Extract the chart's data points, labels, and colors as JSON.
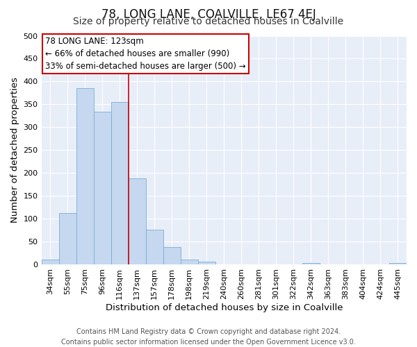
{
  "title": "78, LONG LANE, COALVILLE, LE67 4EJ",
  "subtitle": "Size of property relative to detached houses in Coalville",
  "xlabel": "Distribution of detached houses by size in Coalville",
  "ylabel": "Number of detached properties",
  "bar_labels": [
    "34sqm",
    "55sqm",
    "75sqm",
    "96sqm",
    "116sqm",
    "137sqm",
    "157sqm",
    "178sqm",
    "198sqm",
    "219sqm",
    "240sqm",
    "260sqm",
    "281sqm",
    "301sqm",
    "322sqm",
    "342sqm",
    "363sqm",
    "383sqm",
    "404sqm",
    "424sqm",
    "445sqm"
  ],
  "bar_values": [
    12,
    113,
    385,
    334,
    355,
    188,
    76,
    38,
    12,
    6,
    0,
    0,
    0,
    0,
    0,
    4,
    0,
    0,
    0,
    0,
    4
  ],
  "bar_color": "#c5d8f0",
  "bar_edge_color": "#7aadd4",
  "vline_x_index": 4.5,
  "vline_color": "#cc0000",
  "annotation_title": "78 LONG LANE: 123sqm",
  "annotation_line1": "← 66% of detached houses are smaller (990)",
  "annotation_line2": "33% of semi-detached houses are larger (500) →",
  "annotation_box_color": "#cc0000",
  "ylim": [
    0,
    500
  ],
  "yticks": [
    0,
    50,
    100,
    150,
    200,
    250,
    300,
    350,
    400,
    450,
    500
  ],
  "footer1": "Contains HM Land Registry data © Crown copyright and database right 2024.",
  "footer2": "Contains public sector information licensed under the Open Government Licence v3.0.",
  "fig_bg_color": "#ffffff",
  "plot_bg_color": "#e8eef8",
  "grid_color": "#ffffff",
  "title_fontsize": 12,
  "subtitle_fontsize": 10,
  "axis_label_fontsize": 9.5,
  "tick_fontsize": 8,
  "footer_fontsize": 7,
  "annotation_fontsize": 8.5
}
